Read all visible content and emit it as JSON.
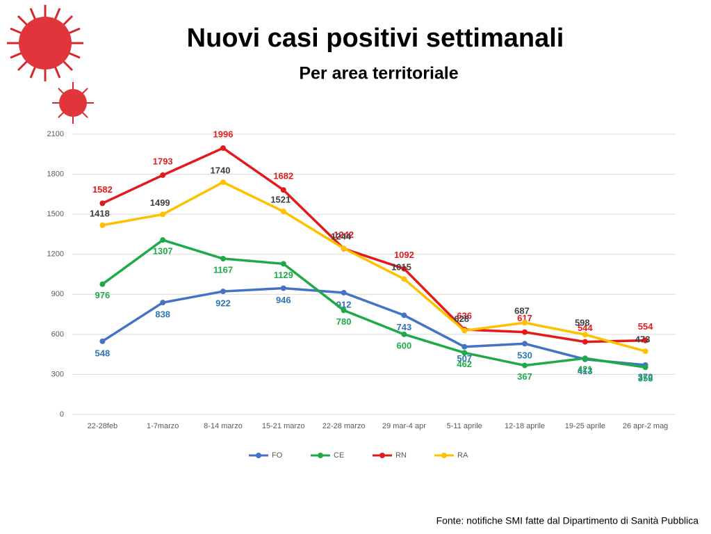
{
  "chart_data": {
    "type": "line",
    "title": "Nuovi casi positivi settimanali",
    "subtitle": "Per area territoriale",
    "source": "Fonte: notifiche SMI fatte dal Dipartimento di Sanità Pubblica",
    "categories": [
      "22-28feb",
      "1-7marzo",
      "8-14 marzo",
      "15-21 marzo",
      "22-28 marzo",
      "29 mar-4 apr",
      "5-11 aprile",
      "12-18 aprile",
      "19-25 aprile",
      "26 apr-2 mag"
    ],
    "series": [
      {
        "name": "FO",
        "color": "#4472c4",
        "label_color": "#2e75b6",
        "values": [
          548,
          838,
          922,
          946,
          912,
          743,
          507,
          530,
          413,
          370
        ]
      },
      {
        "name": "CE",
        "color": "#1faa4a",
        "label_color": "#1faa4a",
        "values": [
          976,
          1307,
          1167,
          1129,
          780,
          600,
          462,
          367,
          421,
          353
        ]
      },
      {
        "name": "RN",
        "color": "#e31a1c",
        "label_color": "#e31a1c",
        "values": [
          1582,
          1793,
          1996,
          1682,
          1242,
          1092,
          636,
          617,
          544,
          554
        ]
      },
      {
        "name": "RA",
        "color": "#ffc000",
        "label_color": "#404040",
        "values": [
          1418,
          1499,
          1740,
          1521,
          1244,
          1015,
          628,
          687,
          598,
          473
        ]
      }
    ],
    "ylim": [
      0,
      2100
    ],
    "yticks": [
      0,
      300,
      600,
      900,
      1200,
      1500,
      1800,
      2100
    ],
    "grid": true,
    "legend": "bottom"
  }
}
